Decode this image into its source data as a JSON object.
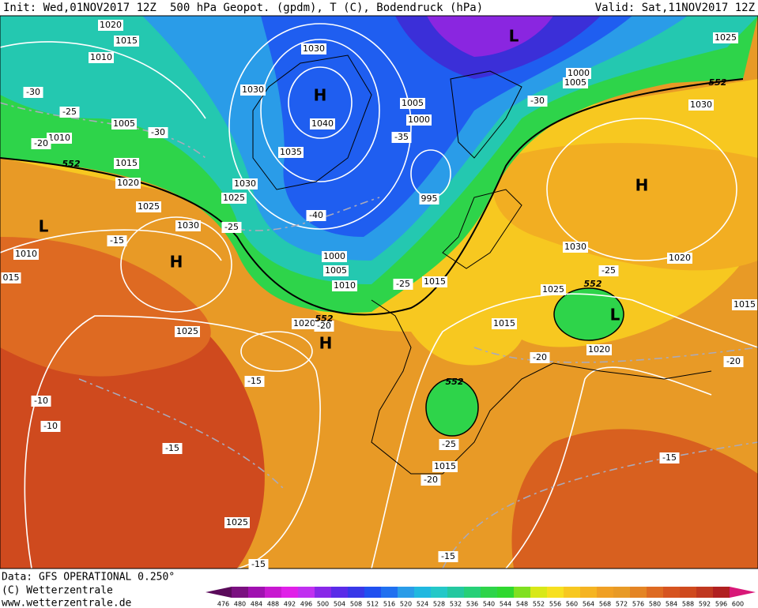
{
  "header": {
    "init": "Init: Wed,01NOV2017 12Z",
    "title": "500 hPa Geopot. (gpdm), T (C), Bodendruck (hPa)",
    "valid": "Valid: Sat,11NOV2017 12Z"
  },
  "footer": [
    "Data: GFS OPERATIONAL 0.250°",
    "(C) Wetterzentrale",
    "www.wetterzentrale.de"
  ],
  "isobar_labels": [
    "1020",
    "1015",
    "1010",
    "1030",
    "1030",
    "1040",
    "1035",
    "1030",
    "1025",
    "1005",
    "1000",
    "995",
    "1005",
    "1010",
    "1015",
    "1020",
    "1025",
    "1030",
    "1010",
    "015",
    "1000",
    "1005",
    "1010",
    "1015",
    "1025",
    "1020",
    "1015",
    "1025",
    "1030",
    "1020",
    "1015",
    "1020",
    "1015",
    "1025",
    "1000",
    "1005",
    "1025",
    "1030"
  ],
  "temperature_labels": [
    "-30",
    "-25",
    "-20",
    "-30",
    "-25",
    "-40",
    "-35",
    "-30",
    "-25",
    "-20",
    "-15",
    "-15",
    "-10",
    "-10",
    "-15",
    "-25",
    "-20",
    "-20",
    "-25",
    "-20",
    "-15",
    "-15",
    "-15"
  ],
  "pressure_centers": [
    "H",
    "H",
    "H",
    "H",
    "L",
    "L",
    "L"
  ],
  "contour_labels": [
    "552",
    "552",
    "552",
    "552",
    "552"
  ],
  "colorbar": {
    "values": [
      476,
      480,
      484,
      488,
      492,
      496,
      500,
      504,
      508,
      512,
      516,
      520,
      524,
      528,
      532,
      536,
      540,
      544,
      548,
      552,
      556,
      560,
      564,
      568,
      572,
      576,
      580,
      584,
      588,
      592,
      596,
      600
    ],
    "colors": [
      "#5a0a5a",
      "#7a1080",
      "#a010b0",
      "#c818d0",
      "#e020e8",
      "#c030f0",
      "#8828e8",
      "#5a2ce8",
      "#3838e8",
      "#2050f0",
      "#2070f0",
      "#2a9ce8",
      "#20b8e0",
      "#24c8c8",
      "#24c8a0",
      "#26d078",
      "#2ed44a",
      "#30d830",
      "#80e020",
      "#d8e818",
      "#f7e020",
      "#f7c820",
      "#f5b422",
      "#f0a024",
      "#e89a26",
      "#e48424",
      "#de6a22",
      "#d65420",
      "#cf4a1e",
      "#c03820",
      "#b02020",
      "#d81878"
    ]
  }
}
